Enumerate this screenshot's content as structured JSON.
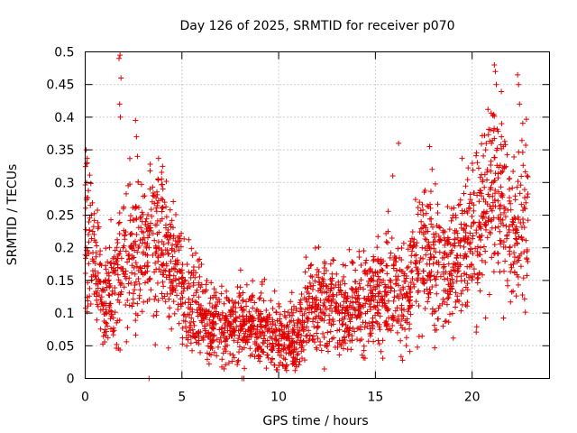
{
  "chart_data": {
    "type": "scatter",
    "title": "Day 126 of 2025, SRMTID for receiver p070",
    "xlabel": "GPS time / hours",
    "ylabel": "SRMTID / TECUs",
    "xlim": [
      0,
      24
    ],
    "ylim": [
      0,
      0.5
    ],
    "xticks": [
      "0",
      "5",
      "10",
      "15",
      "20"
    ],
    "yticks": [
      "0",
      "0.05",
      "0.1",
      "0.15",
      "0.2",
      "0.25",
      "0.3",
      "0.35",
      "0.4",
      "0.45",
      "0.5"
    ],
    "grid": true,
    "marker": "plus",
    "color": "#e00000",
    "series": [
      {
        "name": "SRMTID",
        "trend": [
          [
            0.0,
            0.26
          ],
          [
            0.3,
            0.2
          ],
          [
            0.6,
            0.15
          ],
          [
            1.0,
            0.12
          ],
          [
            1.5,
            0.13
          ],
          [
            2.0,
            0.18
          ],
          [
            2.5,
            0.19
          ],
          [
            3.0,
            0.2
          ],
          [
            3.5,
            0.22
          ],
          [
            4.0,
            0.2
          ],
          [
            4.5,
            0.17
          ],
          [
            5.0,
            0.14
          ],
          [
            5.5,
            0.11
          ],
          [
            6.0,
            0.1
          ],
          [
            6.5,
            0.085
          ],
          [
            7.0,
            0.08
          ],
          [
            7.5,
            0.08
          ],
          [
            8.0,
            0.085
          ],
          [
            8.5,
            0.08
          ],
          [
            9.0,
            0.075
          ],
          [
            9.5,
            0.07
          ],
          [
            10.0,
            0.065
          ],
          [
            10.5,
            0.06
          ],
          [
            11.0,
            0.065
          ],
          [
            11.5,
            0.1
          ],
          [
            12.0,
            0.11
          ],
          [
            12.5,
            0.12
          ],
          [
            13.0,
            0.11
          ],
          [
            13.5,
            0.1
          ],
          [
            14.0,
            0.11
          ],
          [
            14.5,
            0.12
          ],
          [
            15.0,
            0.13
          ],
          [
            15.5,
            0.14
          ],
          [
            16.0,
            0.13
          ],
          [
            16.5,
            0.12
          ],
          [
            17.0,
            0.16
          ],
          [
            17.5,
            0.2
          ],
          [
            18.0,
            0.18
          ],
          [
            18.5,
            0.17
          ],
          [
            19.0,
            0.18
          ],
          [
            19.5,
            0.2
          ],
          [
            20.0,
            0.22
          ],
          [
            20.5,
            0.26
          ],
          [
            21.0,
            0.28
          ],
          [
            21.5,
            0.3
          ],
          [
            22.0,
            0.22
          ],
          [
            22.5,
            0.24
          ],
          [
            22.9,
            0.25
          ]
        ],
        "outliers": [
          [
            1.75,
            0.49
          ],
          [
            1.8,
            0.495
          ],
          [
            1.85,
            0.46
          ],
          [
            1.78,
            0.42
          ],
          [
            1.82,
            0.4
          ],
          [
            2.6,
            0.395
          ],
          [
            2.65,
            0.37
          ],
          [
            2.7,
            0.34
          ],
          [
            3.35,
            0.29
          ],
          [
            3.5,
            0.28
          ],
          [
            3.3,
            0.0
          ],
          [
            8.1,
            0.0
          ],
          [
            8.2,
            0.0
          ],
          [
            21.15,
            0.48
          ],
          [
            21.2,
            0.47
          ],
          [
            21.25,
            0.45
          ],
          [
            22.35,
            0.465
          ],
          [
            22.4,
            0.45
          ],
          [
            22.45,
            0.42
          ],
          [
            21.0,
            0.36
          ],
          [
            20.7,
            0.35
          ],
          [
            0.05,
            0.35
          ],
          [
            0.1,
            0.33
          ],
          [
            16.2,
            0.36
          ],
          [
            17.8,
            0.355
          ],
          [
            15.9,
            0.31
          ]
        ]
      }
    ]
  }
}
